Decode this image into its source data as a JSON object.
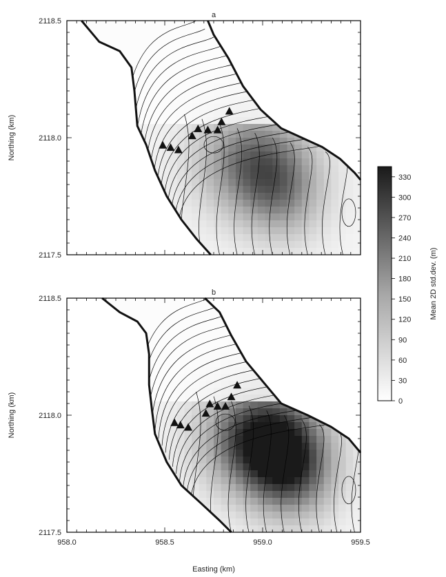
{
  "chart_data": [
    {
      "type": "heatmap",
      "panel_label": "a",
      "xlabel": "",
      "ylabel": "Northing (km)",
      "xlim": [
        958.0,
        959.5
      ],
      "ylim": [
        2117.5,
        2118.5
      ],
      "y_tick_labels": [
        "2117.5",
        "2118.0",
        "2118.5"
      ],
      "x_tick_labels": [],
      "stations": [
        {
          "x": 958.49,
          "y": 2117.97
        },
        {
          "x": 958.53,
          "y": 2117.96
        },
        {
          "x": 958.57,
          "y": 2117.95
        },
        {
          "x": 958.64,
          "y": 2118.01
        },
        {
          "x": 958.67,
          "y": 2118.04
        },
        {
          "x": 958.72,
          "y": 2118.035
        },
        {
          "x": 958.77,
          "y": 2118.035
        },
        {
          "x": 958.79,
          "y": 2118.07
        },
        {
          "x": 958.83,
          "y": 2118.115
        }
      ],
      "shading_peak": {
        "x": 958.95,
        "y": 2117.9,
        "value": 210
      }
    },
    {
      "type": "heatmap",
      "panel_label": "b",
      "xlabel": "Easting (km)",
      "ylabel": "Northing (km)",
      "xlim": [
        958.0,
        959.5
      ],
      "ylim": [
        2117.5,
        2118.5
      ],
      "y_tick_labels": [
        "2117.5",
        "2118.0",
        "2118.5"
      ],
      "x_tick_labels": [
        "958.0",
        "958.5",
        "959.0",
        "959.5"
      ],
      "x_tick_values": [
        958.0,
        958.5,
        959.0,
        959.5
      ],
      "stations": [
        {
          "x": 958.55,
          "y": 2117.97
        },
        {
          "x": 958.58,
          "y": 2117.96
        },
        {
          "x": 958.62,
          "y": 2117.95
        },
        {
          "x": 958.71,
          "y": 2118.01
        },
        {
          "x": 958.73,
          "y": 2118.05
        },
        {
          "x": 958.77,
          "y": 2118.04
        },
        {
          "x": 958.81,
          "y": 2118.04
        },
        {
          "x": 958.84,
          "y": 2118.08
        },
        {
          "x": 958.87,
          "y": 2118.13
        }
      ],
      "shading_peak": {
        "x": 959.0,
        "y": 2117.9,
        "value": 330
      }
    }
  ],
  "colorbar": {
    "label": "Mean 2D std.dev. (m)",
    "ticks": [
      0,
      30,
      60,
      90,
      120,
      150,
      180,
      210,
      240,
      270,
      300,
      330
    ],
    "tick_labels": [
      "0",
      "30",
      "60",
      "90",
      "120",
      "150",
      "180",
      "210",
      "240",
      "270",
      "300",
      "330"
    ],
    "min": 0,
    "max": 345,
    "color_low": "#ffffff",
    "color_high": "#1a1a1a"
  },
  "colors": {
    "boundary": "#111111",
    "contour": "#000000",
    "station": "#111111"
  }
}
